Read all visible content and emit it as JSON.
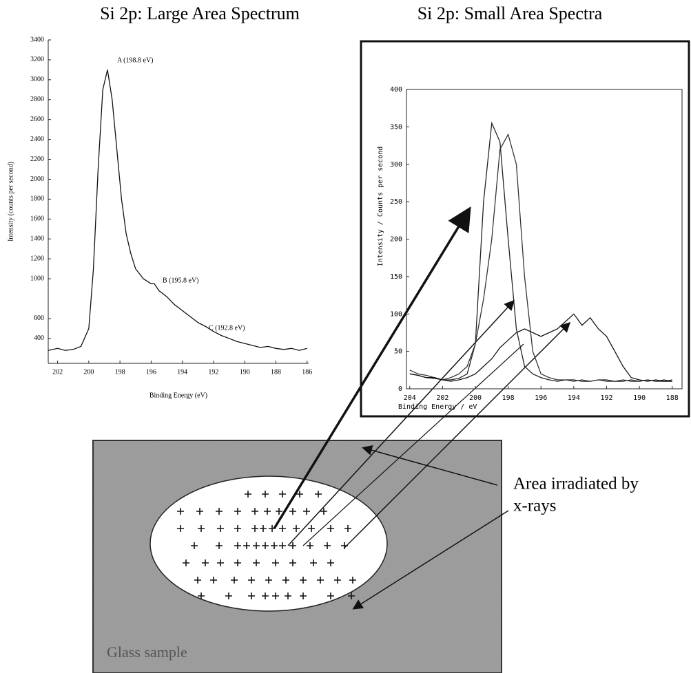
{
  "chart_data": [
    {
      "type": "line",
      "title": "Si 2p: Large Area Spectrum",
      "x_label": "Binding Energy (eV)",
      "y_label": "Intensity (counts per second)",
      "x": [
        202.6,
        202,
        201.5,
        201,
        200.5,
        200,
        199.7,
        199.4,
        199.1,
        198.8,
        198.5,
        198.2,
        197.9,
        197.6,
        197.3,
        197,
        196.5,
        196,
        195.8,
        195.5,
        195,
        194.5,
        194,
        193.5,
        193,
        192.5,
        192,
        191.5,
        191,
        190.5,
        190,
        189.5,
        189,
        188.5,
        188,
        187.5,
        187,
        186.5,
        186
      ],
      "values": [
        280,
        300,
        280,
        290,
        320,
        500,
        1100,
        2100,
        2900,
        3100,
        2800,
        2300,
        1800,
        1450,
        1250,
        1100,
        1000,
        950,
        950,
        880,
        820,
        740,
        680,
        620,
        560,
        520,
        470,
        430,
        400,
        370,
        350,
        330,
        310,
        320,
        300,
        290,
        300,
        280,
        300
      ],
      "color": "#111111",
      "xlim": [
        202.6,
        185.9
      ],
      "ylim": [
        150,
        3400
      ],
      "xticks": [
        202,
        200,
        198,
        196,
        194,
        192,
        190,
        188,
        186
      ],
      "yticks": [
        400,
        600,
        1000,
        1200,
        1400,
        1600,
        1800,
        2000,
        2200,
        2400,
        2600,
        2800,
        3000,
        3200,
        3400
      ],
      "annotations": [
        "A (198.8 eV)",
        "B (195.8 eV)",
        "C (192.8 eV)"
      ]
    },
    {
      "type": "line",
      "title": "Si 2p: Small Area Spectra",
      "x_label": "Binding Energy / eV",
      "y_label": "Intensity / Counts per second",
      "x": [
        204,
        203.5,
        203,
        202.5,
        202,
        201.5,
        201,
        200.5,
        200,
        199.5,
        199,
        198.5,
        198,
        197.5,
        197,
        196.5,
        196,
        195.5,
        195,
        194.5,
        194,
        193.5,
        193,
        192.5,
        192,
        191.5,
        191,
        190.5,
        190,
        189.5,
        189,
        188.5,
        188
      ],
      "series": [
        {
          "color": "#222222",
          "values": [
            20,
            18,
            15,
            14,
            12,
            12,
            14,
            20,
            60,
            250,
            355,
            330,
            200,
            80,
            30,
            20,
            15,
            12,
            10,
            12,
            12,
            10,
            10,
            12,
            12,
            10,
            10,
            12,
            10,
            12,
            10,
            12,
            10
          ]
        },
        {
          "color": "#333333",
          "values": [
            25,
            20,
            18,
            15,
            12,
            15,
            20,
            30,
            60,
            120,
            200,
            320,
            340,
            300,
            150,
            50,
            20,
            15,
            12,
            12,
            10,
            12,
            10,
            12,
            10,
            10,
            12,
            10,
            10,
            12,
            10,
            10,
            12
          ]
        },
        {
          "color": "#111111",
          "values": [
            20,
            18,
            15,
            15,
            12,
            10,
            12,
            15,
            20,
            30,
            40,
            55,
            65,
            75,
            80,
            75,
            70,
            75,
            80,
            90,
            100,
            85,
            95,
            80,
            70,
            50,
            30,
            15,
            12,
            10,
            12,
            10,
            10
          ]
        }
      ],
      "xlim": [
        204.2,
        187.4
      ],
      "ylim": [
        0,
        400
      ],
      "xticks": [
        204,
        202,
        200,
        198,
        196,
        194,
        192,
        190,
        188
      ],
      "yticks": [
        0,
        50,
        100,
        150,
        200,
        250,
        300,
        350,
        400
      ]
    }
  ],
  "diagram": {
    "label_lines": [
      "Area irradiated by",
      "x-rays"
    ],
    "sample_label": "Glass sample"
  }
}
